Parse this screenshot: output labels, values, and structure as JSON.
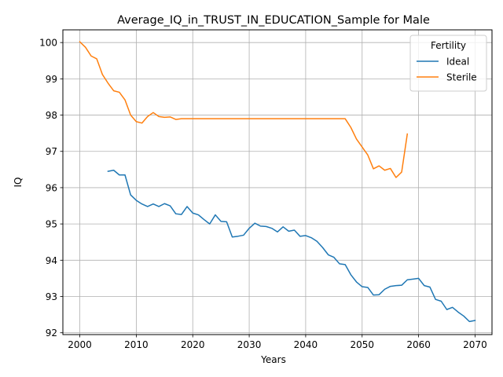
{
  "chart_data": {
    "type": "line",
    "title": "Average_IQ_in_TRUST_IN_EDUCATION_Sample for Male",
    "xlabel": "Years",
    "ylabel": "IQ",
    "xlim": [
      1997,
      2073
    ],
    "ylim": [
      91.95,
      100.35
    ],
    "xticks": [
      2000,
      2010,
      2020,
      2030,
      2040,
      2050,
      2060,
      2070
    ],
    "yticks": [
      92,
      93,
      94,
      95,
      96,
      97,
      98,
      99,
      100
    ],
    "grid": true,
    "legend": {
      "title": "Fertility",
      "placement": "top-right",
      "entries": [
        "Ideal",
        "Sterile"
      ]
    },
    "series": [
      {
        "name": "Ideal",
        "color": "#1f77b4",
        "x": [
          2005,
          2006,
          2007,
          2008,
          2009,
          2010,
          2011,
          2012,
          2013,
          2014,
          2015,
          2016,
          2017,
          2018,
          2019,
          2020,
          2021,
          2022,
          2023,
          2024,
          2025,
          2026,
          2027,
          2028,
          2029,
          2030,
          2031,
          2032,
          2033,
          2034,
          2035,
          2036,
          2037,
          2038,
          2039,
          2040,
          2041,
          2042,
          2043,
          2044,
          2045,
          2046,
          2047,
          2048,
          2049,
          2050,
          2051,
          2052,
          2053,
          2054,
          2055,
          2056,
          2057,
          2058,
          2059,
          2060,
          2061,
          2062,
          2063,
          2064,
          2065,
          2066,
          2067,
          2068,
          2069,
          2070
        ],
        "values": [
          96.45,
          96.48,
          96.35,
          96.35,
          95.8,
          95.65,
          95.55,
          95.48,
          95.55,
          95.48,
          95.56,
          95.5,
          95.28,
          95.26,
          95.48,
          95.3,
          95.25,
          95.12,
          95.0,
          95.25,
          95.07,
          95.06,
          94.64,
          94.66,
          94.69,
          94.88,
          95.02,
          94.94,
          94.93,
          94.88,
          94.78,
          94.92,
          94.8,
          94.83,
          94.66,
          94.68,
          94.62,
          94.52,
          94.35,
          94.15,
          94.08,
          93.9,
          93.88,
          93.6,
          93.4,
          93.27,
          93.25,
          93.04,
          93.05,
          93.2,
          93.28,
          93.3,
          93.31,
          93.46,
          93.48,
          93.5,
          93.3,
          93.26,
          92.92,
          92.87,
          92.64,
          92.7,
          92.57,
          92.46,
          92.31,
          92.34
        ]
      },
      {
        "name": "Sterile",
        "color": "#ff7f0e",
        "x": [
          2000,
          2001,
          2002,
          2003,
          2004,
          2005,
          2006,
          2007,
          2008,
          2009,
          2010,
          2011,
          2012,
          2013,
          2014,
          2015,
          2016,
          2017,
          2018,
          2019,
          2020,
          2021,
          2022,
          2023,
          2024,
          2025,
          2026,
          2027,
          2028,
          2029,
          2030,
          2031,
          2032,
          2033,
          2034,
          2035,
          2036,
          2037,
          2038,
          2039,
          2040,
          2041,
          2042,
          2043,
          2044,
          2045,
          2046,
          2047,
          2048,
          2049,
          2050,
          2051,
          2052,
          2053,
          2054,
          2055,
          2056,
          2057,
          2058
        ],
        "values": [
          100.02,
          99.87,
          99.63,
          99.55,
          99.12,
          98.88,
          98.67,
          98.63,
          98.42,
          98.0,
          97.82,
          97.78,
          97.96,
          98.07,
          97.96,
          97.94,
          97.95,
          97.88,
          97.9,
          97.9,
          97.9,
          97.9,
          97.9,
          97.9,
          97.9,
          97.9,
          97.9,
          97.9,
          97.9,
          97.9,
          97.9,
          97.9,
          97.9,
          97.9,
          97.9,
          97.9,
          97.9,
          97.9,
          97.9,
          97.9,
          97.9,
          97.9,
          97.9,
          97.9,
          97.9,
          97.9,
          97.9,
          97.9,
          97.66,
          97.34,
          97.12,
          96.9,
          96.52,
          96.6,
          96.48,
          96.53,
          96.28,
          96.43,
          97.48
        ]
      }
    ]
  }
}
